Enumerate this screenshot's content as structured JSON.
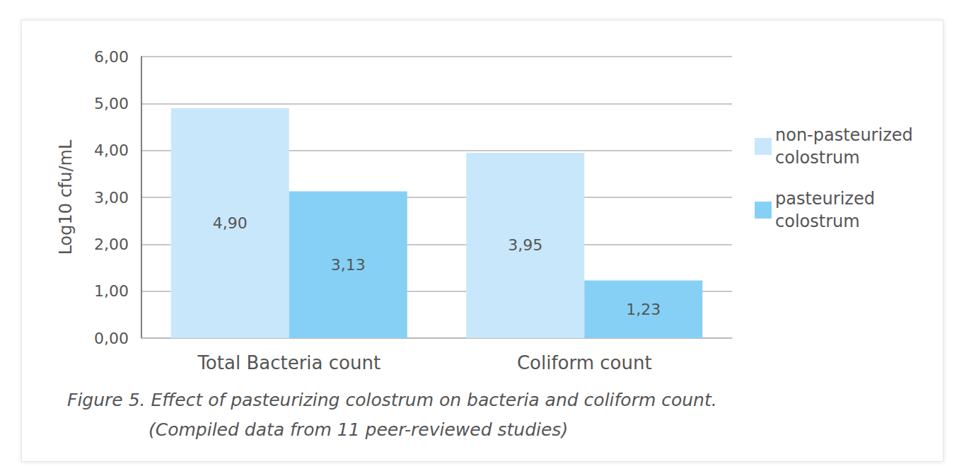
{
  "chart_data": {
    "type": "bar",
    "title": "Figure 5. Effect of pasteurizing colostrum on bacteria and coliform count.",
    "subtitle": "(Compiled data from 11 peer-reviewed studies)",
    "y_label": "Log10 cfu/mL",
    "categories": [
      "Total Bacteria count",
      "Coliform count"
    ],
    "series": [
      {
        "name": "non-pasteurized colostrum",
        "color": "#c9e7fa",
        "values": [
          4.9,
          3.95
        ],
        "value_labels": [
          "4,90",
          "3,95"
        ]
      },
      {
        "name": "pasteurized colostrum",
        "color": "#86d0f6",
        "values": [
          3.13,
          1.23
        ],
        "value_labels": [
          "3,13",
          "1,23"
        ]
      }
    ],
    "ylim": [
      0,
      6
    ],
    "yticks": [
      {
        "value": 0,
        "label": "0,00"
      },
      {
        "value": 1,
        "label": "1,00"
      },
      {
        "value": 2,
        "label": "2,00"
      },
      {
        "value": 3,
        "label": "3,00"
      },
      {
        "value": 4,
        "label": "4,00"
      },
      {
        "value": 5,
        "label": "5,00"
      },
      {
        "value": 6,
        "label": "6,00"
      }
    ],
    "grid": true,
    "legend": "right",
    "data_labels": true
  }
}
